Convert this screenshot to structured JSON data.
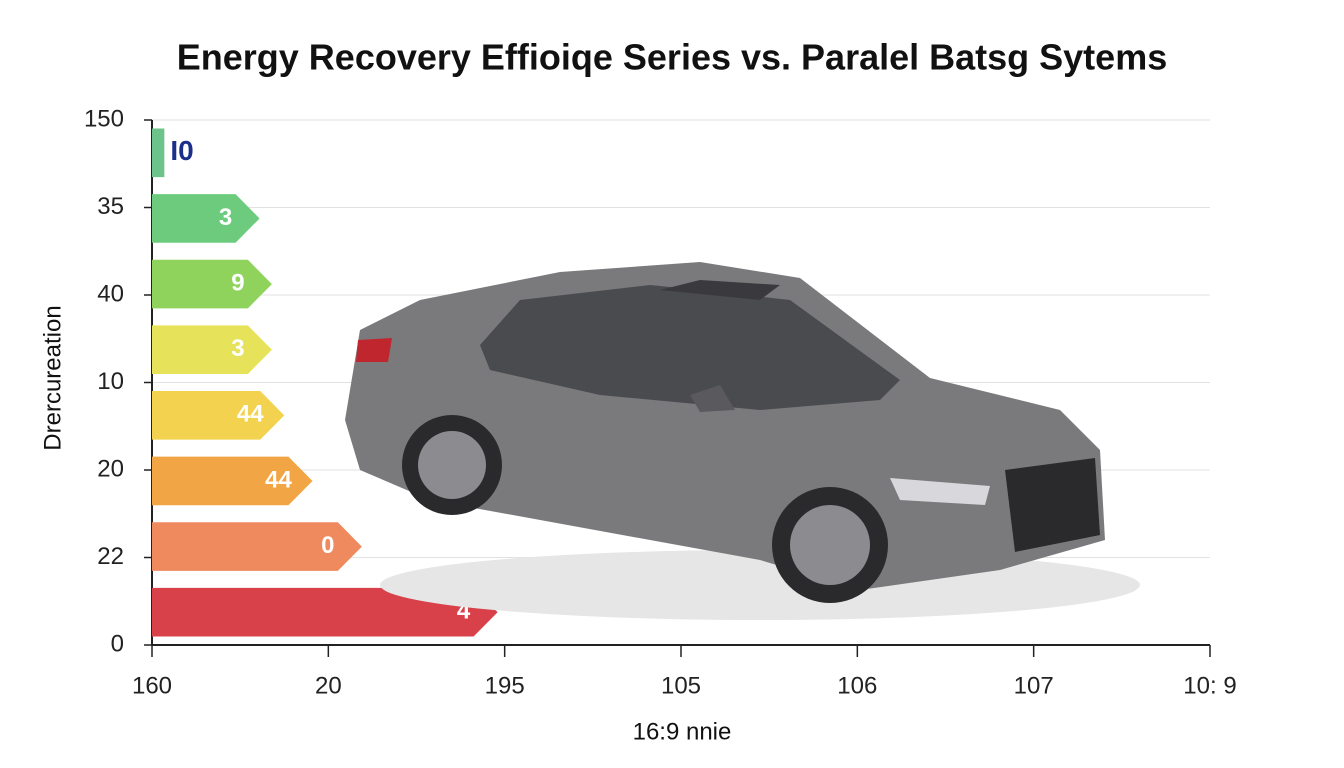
{
  "chart_data": {
    "type": "bar",
    "title": "Energy Recovery Effioiqe Series vs. Paralel Batsg Sytems",
    "x_label": "16:9 nnie",
    "y_label": "Drercureation",
    "categories": [
      "I0",
      "3",
      "9",
      "3",
      "44",
      "44",
      "0",
      "4"
    ],
    "values": [
      0.07,
      0.61,
      0.68,
      0.68,
      0.75,
      0.91,
      1.19,
      1.96
    ],
    "colors": [
      "#6cc48a",
      "#6ccb7c",
      "#8fd35c",
      "#e6e35a",
      "#f2d24e",
      "#f2a545",
      "#ee8a5e",
      "#d9414a"
    ],
    "xlim": [
      0,
      6
    ],
    "xticks": [
      {
        "value": 0,
        "label": "160"
      },
      {
        "value": 1,
        "label": "20"
      },
      {
        "value": 2,
        "label": "195"
      },
      {
        "value": 3,
        "label": "105"
      },
      {
        "value": 4,
        "label": "106"
      },
      {
        "value": 5,
        "label": "107"
      },
      {
        "value": 6,
        "label": "10: 9"
      }
    ],
    "ylim": [
      0,
      6
    ],
    "yticks": [
      0,
      {
        "value": 1,
        "label": "22"
      },
      {
        "value": 2,
        "label": "20"
      },
      {
        "value": 3,
        "label": "10"
      },
      {
        "value": 4,
        "label": "40"
      },
      {
        "value": 5,
        "label": "35"
      },
      {
        "value": 6,
        "label": "150"
      }
    ],
    "grid": true
  }
}
